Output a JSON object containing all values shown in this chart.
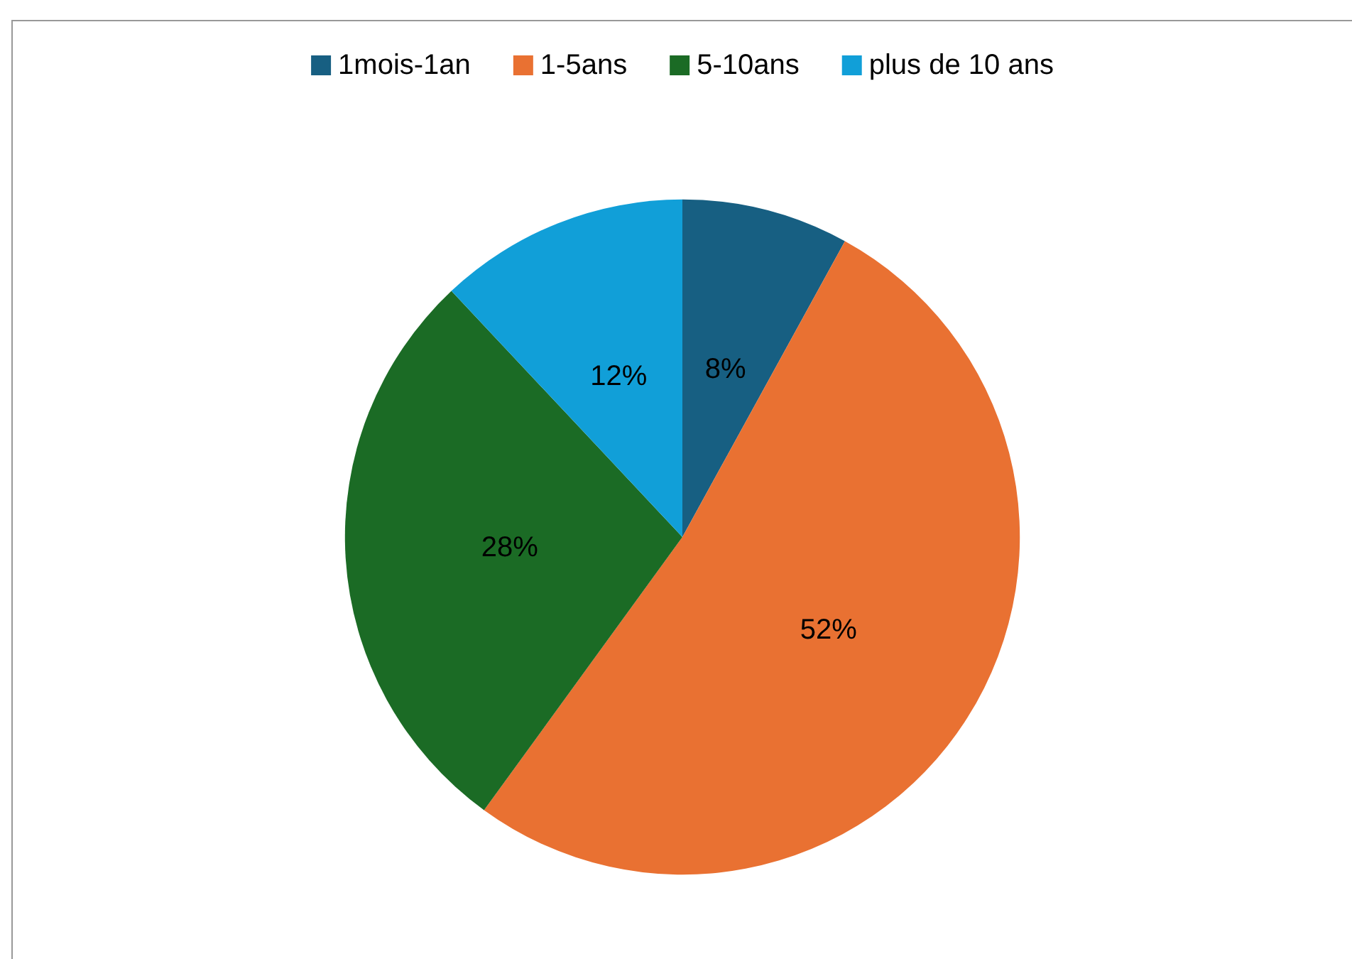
{
  "chart_data": {
    "type": "pie",
    "categories": [
      "1mois-1an",
      "1-5ans",
      "5-10ans",
      "plus de 10 ans"
    ],
    "values": [
      8,
      52,
      28,
      12
    ],
    "colors": [
      "#175f82",
      "#e97132",
      "#1b6b25",
      "#119fd8"
    ],
    "legend": "top",
    "value_labels": [
      "8%",
      "52%",
      "28%",
      "12%"
    ]
  }
}
